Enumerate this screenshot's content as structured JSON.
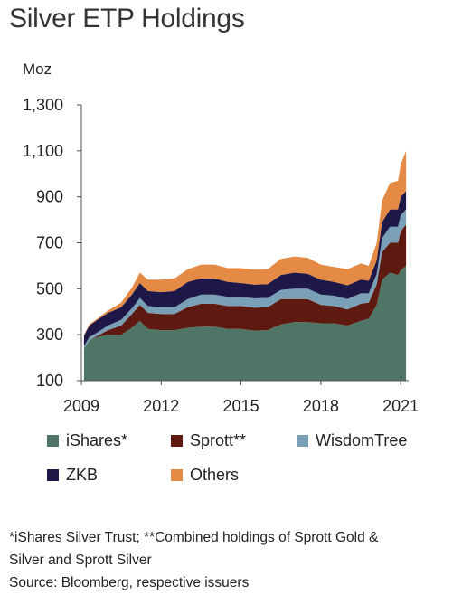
{
  "header": {
    "title": "Silver ETP Holdings"
  },
  "chart_data": {
    "type": "area",
    "stacked": true,
    "title": "Silver ETP Holdings",
    "ylabel": "Moz",
    "xlabel": "",
    "ylim": [
      100,
      1300
    ],
    "yticks": [
      100,
      300,
      500,
      700,
      900,
      1100,
      1300
    ],
    "ytick_labels": [
      "100",
      "300",
      "500",
      "700",
      "900",
      "1,100",
      "1,300"
    ],
    "xticks": [
      2009,
      2012,
      2015,
      2018,
      2021
    ],
    "xlim": [
      2009,
      2021.3
    ],
    "grid": false,
    "legend_position": "bottom",
    "x": [
      2009.1,
      2009.3,
      2009.6,
      2010.0,
      2010.5,
      2010.9,
      2011.2,
      2011.5,
      2012.0,
      2012.5,
      2013.0,
      2013.5,
      2014.0,
      2014.5,
      2015.0,
      2015.5,
      2016.0,
      2016.5,
      2017.0,
      2017.5,
      2018.0,
      2018.5,
      2019.0,
      2019.5,
      2019.8,
      2020.1,
      2020.3,
      2020.6,
      2020.9,
      2021.0,
      2021.2
    ],
    "series": [
      {
        "name": "iShares*",
        "values": [
          240,
          275,
          290,
          300,
          300,
          330,
          360,
          325,
          320,
          320,
          330,
          335,
          335,
          325,
          325,
          318,
          320,
          345,
          355,
          355,
          350,
          350,
          340,
          360,
          370,
          430,
          540,
          570,
          560,
          580,
          600
        ]
      },
      {
        "name": "Sprott**",
        "values": [
          0,
          0,
          5,
          20,
          40,
          60,
          70,
          70,
          70,
          70,
          90,
          100,
          100,
          100,
          100,
          100,
          100,
          110,
          100,
          100,
          80,
          75,
          70,
          75,
          70,
          90,
          120,
          130,
          140,
          170,
          180
        ]
      },
      {
        "name": "WisdomTree",
        "values": [
          10,
          15,
          15,
          20,
          25,
          25,
          30,
          30,
          30,
          30,
          35,
          40,
          40,
          40,
          40,
          40,
          40,
          40,
          45,
          45,
          45,
          45,
          45,
          45,
          40,
          45,
          60,
          70,
          70,
          70,
          65
        ]
      },
      {
        "name": "ZKB",
        "values": [
          45,
          50,
          55,
          55,
          55,
          60,
          65,
          65,
          65,
          70,
          75,
          70,
          70,
          65,
          60,
          60,
          60,
          65,
          70,
          65,
          65,
          60,
          60,
          60,
          55,
          60,
          70,
          75,
          75,
          80,
          80
        ]
      },
      {
        "name": "Others",
        "values": [
          5,
          5,
          5,
          10,
          20,
          30,
          45,
          50,
          55,
          55,
          55,
          60,
          60,
          60,
          65,
          65,
          65,
          70,
          70,
          70,
          65,
          65,
          70,
          70,
          65,
          75,
          95,
          115,
          125,
          140,
          175
        ]
      }
    ],
    "colors": {
      "iShares*": "#4e7565",
      "Sprott**": "#5e1a10",
      "WisdomTree": "#7aa0b8",
      "ZKB": "#1e1848",
      "Others": "#e58a45"
    }
  },
  "footnote": {
    "line1": "*iShares Silver Trust; **Combined holdings of Sprott Gold &",
    "line2": "Silver and Sprott Silver",
    "line3": "Source: Bloomberg, respective issuers"
  }
}
